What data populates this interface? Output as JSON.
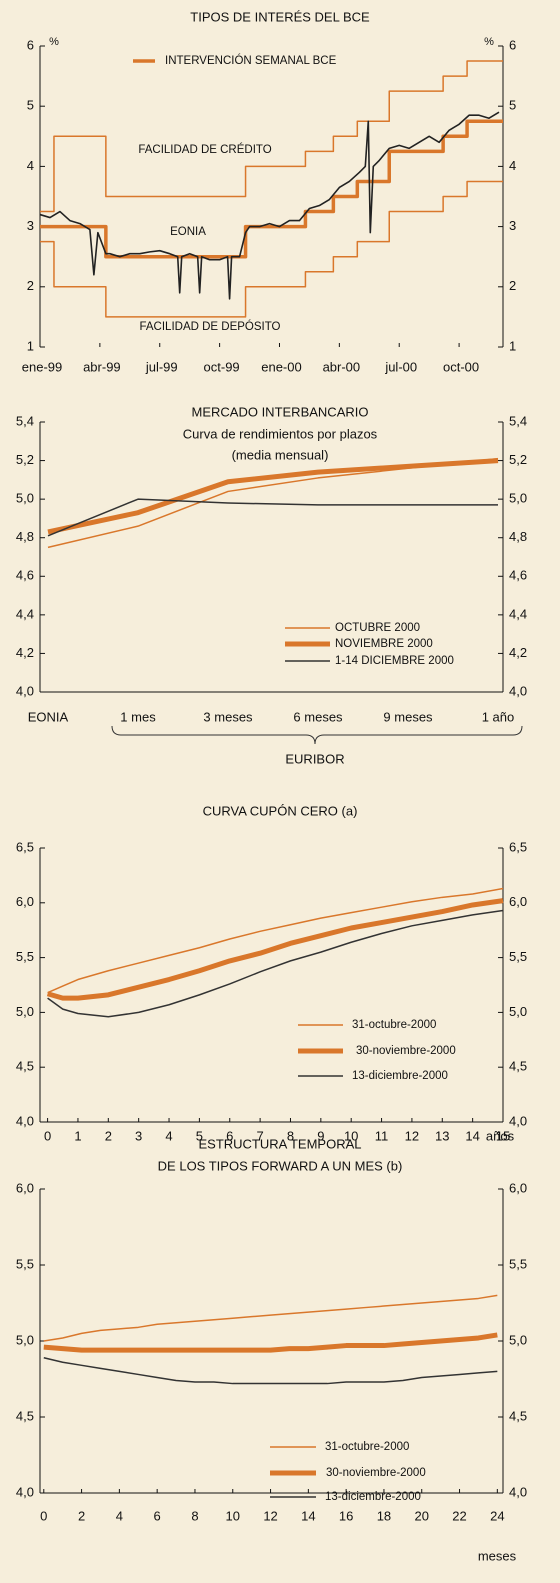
{
  "chart_data": [
    {
      "type": "line",
      "title": "TIPOS DE INTERÉS DEL BCE",
      "unit": "%",
      "xlim": [
        0,
        23.2
      ],
      "xticks": [
        {
          "value": 0,
          "label": "ene-99"
        },
        {
          "value": 3,
          "label": "abr-99"
        },
        {
          "value": 6,
          "label": "jul-99"
        },
        {
          "value": 9,
          "label": "oct-99"
        },
        {
          "value": 12,
          "label": "ene-00"
        },
        {
          "value": 15,
          "label": "abr-00"
        },
        {
          "value": 18,
          "label": "jul-00"
        },
        {
          "value": 21,
          "label": "oct-00"
        }
      ],
      "ylim": [
        1,
        6
      ],
      "yticks": [
        1,
        2,
        3,
        4,
        5,
        6
      ],
      "series": [
        {
          "name": "INTERVENCIÓN SEMANAL BCE",
          "color": "#d9772b",
          "x": [
            0,
            3.3,
            3.3,
            10.3,
            10.3,
            13.3,
            13.3,
            14.7,
            14.7,
            15.9,
            15.9,
            17.5,
            17.5,
            20.2,
            20.2,
            21.4,
            21.4,
            23.2
          ],
          "values": [
            3,
            3,
            2.5,
            2.5,
            3,
            3,
            3.25,
            3.25,
            3.5,
            3.5,
            3.75,
            3.75,
            4.25,
            4.25,
            4.5,
            4.5,
            4.75,
            4.75
          ]
        },
        {
          "name": "FACILIDAD DE CRÉDITO",
          "color": "#d9772b",
          "x": [
            0,
            0.7,
            0.7,
            3.3,
            3.3,
            10.3,
            10.3,
            13.3,
            13.3,
            14.7,
            14.7,
            15.9,
            15.9,
            17.5,
            17.5,
            20.2,
            20.2,
            21.4,
            21.4,
            23.2
          ],
          "values": [
            3.25,
            3.25,
            4.5,
            4.5,
            3.5,
            3.5,
            4,
            4,
            4.25,
            4.25,
            4.5,
            4.5,
            4.75,
            4.75,
            5.25,
            5.25,
            5.5,
            5.5,
            5.75,
            5.75
          ]
        },
        {
          "name": "FACILIDAD DE DEPÓSITO",
          "color": "#d9772b",
          "x": [
            0,
            0.7,
            0.7,
            3.3,
            3.3,
            10.3,
            10.3,
            13.3,
            13.3,
            14.7,
            14.7,
            15.9,
            15.9,
            17.5,
            17.5,
            20.2,
            20.2,
            21.4,
            21.4,
            23.2
          ],
          "values": [
            2.75,
            2.75,
            2,
            2,
            1.5,
            1.5,
            2,
            2,
            2.25,
            2.25,
            2.5,
            2.5,
            2.75,
            2.75,
            3.25,
            3.25,
            3.5,
            3.5,
            3.75,
            3.75
          ]
        },
        {
          "name": "EONIA",
          "color": "#222222",
          "x": [
            0,
            0.5,
            1,
            1.5,
            2,
            2.5,
            2.7,
            2.9,
            3.3,
            3.5,
            4,
            4.5,
            5,
            5.5,
            6,
            6.5,
            6.9,
            7,
            7.1,
            7.5,
            7.9,
            8,
            8.1,
            8.5,
            9,
            9.4,
            9.5,
            9.6,
            10,
            10.3,
            10.5,
            11,
            11.5,
            12,
            12.5,
            13,
            13.5,
            14,
            14.5,
            15,
            15.5,
            16,
            16.3,
            16.45,
            16.55,
            16.7,
            17,
            17.5,
            18,
            18.5,
            19,
            19.5,
            20,
            20.5,
            21,
            21.5,
            22,
            22.5,
            23
          ],
          "values": [
            3.2,
            3.15,
            3.25,
            3.1,
            3.05,
            2.95,
            2.2,
            2.9,
            2.55,
            2.55,
            2.5,
            2.55,
            2.55,
            2.58,
            2.6,
            2.55,
            2.5,
            1.9,
            2.5,
            2.55,
            2.5,
            1.9,
            2.5,
            2.45,
            2.45,
            2.5,
            1.8,
            2.5,
            2.5,
            2.9,
            3.0,
            3.0,
            3.05,
            3.0,
            3.1,
            3.1,
            3.3,
            3.35,
            3.45,
            3.65,
            3.75,
            3.9,
            4.0,
            4.75,
            2.9,
            4.0,
            4.1,
            4.3,
            4.35,
            4.3,
            4.4,
            4.5,
            4.4,
            4.6,
            4.7,
            4.85,
            4.85,
            4.8,
            4.9
          ]
        }
      ]
    },
    {
      "type": "line",
      "title": "MERCADO INTERBANCARIO",
      "subtitle": [
        "Curva de rendimientos por plazos",
        "(media mensual)"
      ],
      "categories": [
        "EONIA",
        "1 mes",
        "3 meses",
        "6 meses",
        "9 meses",
        "1 año"
      ],
      "annotation": "EURIBOR",
      "ylim": [
        4.0,
        5.4
      ],
      "yticks": [
        {
          "value": 4.0,
          "label": "4,0"
        },
        {
          "value": 4.2,
          "label": "4,2"
        },
        {
          "value": 4.4,
          "label": "4,4"
        },
        {
          "value": 4.6,
          "label": "4,6"
        },
        {
          "value": 4.8,
          "label": "4,8"
        },
        {
          "value": 5.0,
          "label": "5,0"
        },
        {
          "value": 5.2,
          "label": "5,2"
        },
        {
          "value": 5.4,
          "label": "5,4"
        }
      ],
      "series": [
        {
          "name": "OCTUBRE 2000",
          "color": "#d9772b",
          "values": [
            4.75,
            4.86,
            5.04,
            5.11,
            5.16,
            5.21
          ]
        },
        {
          "name": "NOVIEMBRE 2000",
          "color": "#d9772b",
          "values": [
            4.83,
            4.93,
            5.09,
            5.14,
            5.17,
            5.2
          ]
        },
        {
          "name": "1-14 DICIEMBRE 2000",
          "color": "#333333",
          "values": [
            4.81,
            5.0,
            4.98,
            4.97,
            4.97,
            4.97
          ]
        }
      ]
    },
    {
      "type": "line",
      "title": "CURVA CUPÓN CERO (a)",
      "xlabel": "años",
      "x": [
        0,
        0.5,
        1,
        2,
        3,
        4,
        5,
        6,
        7,
        8,
        9,
        10,
        11,
        12,
        13,
        14,
        15
      ],
      "xlim": [
        -0.25,
        15
      ],
      "xticks": [
        0,
        1,
        2,
        3,
        4,
        5,
        6,
        7,
        8,
        9,
        10,
        11,
        12,
        13,
        14,
        15
      ],
      "ylim": [
        4.0,
        6.5
      ],
      "yticks": [
        {
          "value": 4.0,
          "label": "4,0"
        },
        {
          "value": 4.5,
          "label": "4,5"
        },
        {
          "value": 5.0,
          "label": "5,0"
        },
        {
          "value": 5.5,
          "label": "5,5"
        },
        {
          "value": 6.0,
          "label": "6,0"
        },
        {
          "value": 6.5,
          "label": "6,5"
        }
      ],
      "series": [
        {
          "name": "31-octubre-2000",
          "color": "#d9772b",
          "values": [
            5.18,
            5.24,
            5.3,
            5.38,
            5.45,
            5.52,
            5.59,
            5.67,
            5.74,
            5.8,
            5.86,
            5.91,
            5.96,
            6.01,
            6.05,
            6.08,
            6.13
          ]
        },
        {
          "name": "30-noviembre-2000",
          "color": "#d9772b",
          "values": [
            5.17,
            5.13,
            5.13,
            5.16,
            5.23,
            5.3,
            5.38,
            5.47,
            5.54,
            5.63,
            5.7,
            5.77,
            5.82,
            5.87,
            5.92,
            5.98,
            6.02
          ]
        },
        {
          "name": "13-diciembre-2000",
          "color": "#333333",
          "values": [
            5.13,
            5.03,
            4.99,
            4.96,
            5.0,
            5.07,
            5.16,
            5.26,
            5.37,
            5.47,
            5.55,
            5.64,
            5.72,
            5.79,
            5.84,
            5.89,
            5.93
          ]
        }
      ]
    },
    {
      "type": "line",
      "title": [
        "ESTRUCTURA TEMPORAL",
        "DE LOS TIPOS FORWARD A UN MES (b)"
      ],
      "xlabel": "meses",
      "x": [
        0,
        1,
        2,
        3,
        4,
        5,
        6,
        7,
        8,
        9,
        10,
        11,
        12,
        13,
        14,
        15,
        16,
        17,
        18,
        19,
        20,
        21,
        22,
        23,
        24
      ],
      "xlim": [
        -0.2,
        24.3
      ],
      "xticks": [
        0,
        2,
        4,
        6,
        8,
        10,
        12,
        14,
        16,
        18,
        20,
        22,
        24
      ],
      "ylim": [
        4.0,
        6.0
      ],
      "yticks": [
        {
          "value": 4.0,
          "label": "4,0"
        },
        {
          "value": 4.5,
          "label": "4,5"
        },
        {
          "value": 5.0,
          "label": "5,0"
        },
        {
          "value": 5.5,
          "label": "5,5"
        },
        {
          "value": 6.0,
          "label": "6,0"
        }
      ],
      "series": [
        {
          "name": "31-octubre-2000",
          "color": "#d9772b",
          "values": [
            5.0,
            5.02,
            5.05,
            5.07,
            5.08,
            5.09,
            5.11,
            5.12,
            5.13,
            5.14,
            5.15,
            5.16,
            5.17,
            5.18,
            5.19,
            5.2,
            5.21,
            5.22,
            5.23,
            5.24,
            5.25,
            5.26,
            5.27,
            5.28,
            5.3
          ]
        },
        {
          "name": "30-noviembre-2000",
          "color": "#d9772b",
          "values": [
            4.96,
            4.95,
            4.94,
            4.94,
            4.94,
            4.94,
            4.94,
            4.94,
            4.94,
            4.94,
            4.94,
            4.94,
            4.94,
            4.95,
            4.95,
            4.96,
            4.97,
            4.97,
            4.97,
            4.98,
            4.99,
            5.0,
            5.01,
            5.02,
            5.04
          ]
        },
        {
          "name": "13-diciembre-2000",
          "color": "#333333",
          "values": [
            4.89,
            4.86,
            4.84,
            4.82,
            4.8,
            4.78,
            4.76,
            4.74,
            4.73,
            4.73,
            4.72,
            4.72,
            4.72,
            4.72,
            4.72,
            4.72,
            4.73,
            4.73,
            4.73,
            4.74,
            4.76,
            4.77,
            4.78,
            4.79,
            4.8
          ]
        }
      ]
    }
  ]
}
